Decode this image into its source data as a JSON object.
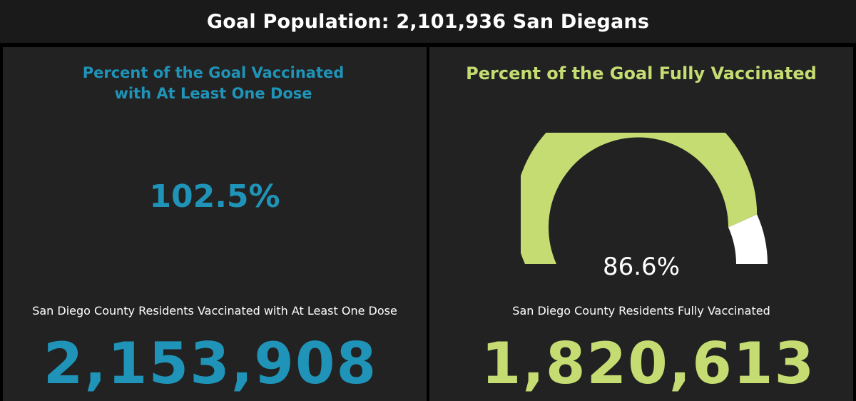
{
  "header": {
    "title": "Goal Population: 2,101,936 San Diegans"
  },
  "left_panel": {
    "title_line1": "Percent of the Goal Vaccinated",
    "title_line2": "with At Least One Dose",
    "percent": "102.5%",
    "caption": "San Diego County Residents Vaccinated with At Least One Dose",
    "count": "2,153,908",
    "accent_color": "#1f94b8"
  },
  "right_panel": {
    "title": "Percent of the Goal Fully Vaccinated",
    "gauge": {
      "value_label": "86.6%",
      "fraction": 0.866,
      "fill_color": "#c5dc72",
      "remainder_color": "#ffffff"
    },
    "caption": "San Diego County Residents Fully Vaccinated",
    "count": "1,820,613",
    "accent_color": "#c5dc72"
  }
}
